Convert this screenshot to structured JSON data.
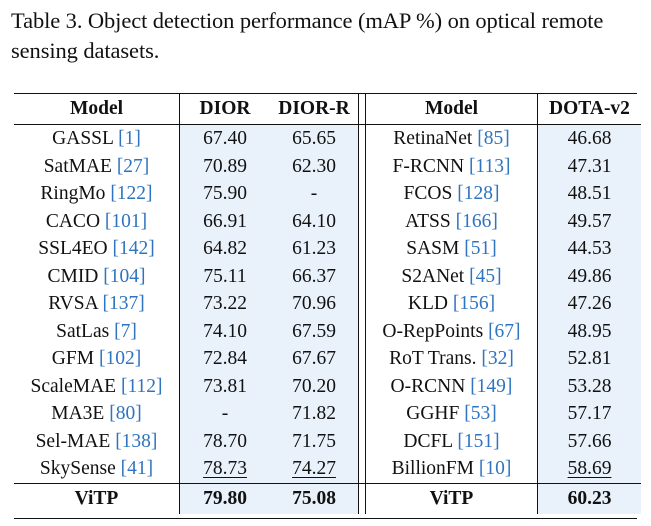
{
  "caption": {
    "line1": "Table 3. Object detection performance (mAP %) on optical remote",
    "line2": "sensing datasets."
  },
  "headers": {
    "model_left": "Model",
    "dior": "DIOR",
    "dior_r": "DIOR-R",
    "model_right": "Model",
    "dota_v2": "DOTA-v2"
  },
  "rows": [
    {
      "left_name": "GASSL",
      "left_ref": "[1]",
      "dior": "67.40",
      "dior_r": "65.65",
      "right_name": "RetinaNet",
      "right_ref": "[85]",
      "dota": "46.68"
    },
    {
      "left_name": "SatMAE",
      "left_ref": "[27]",
      "dior": "70.89",
      "dior_r": "62.30",
      "right_name": "F-RCNN",
      "right_ref": "[113]",
      "dota": "47.31"
    },
    {
      "left_name": "RingMo",
      "left_ref": "[122]",
      "dior": "75.90",
      "dior_r": "-",
      "right_name": "FCOS",
      "right_ref": "[128]",
      "dota": "48.51"
    },
    {
      "left_name": "CACO",
      "left_ref": "[101]",
      "dior": "66.91",
      "dior_r": "64.10",
      "right_name": "ATSS",
      "right_ref": "[166]",
      "dota": "49.57"
    },
    {
      "left_name": "SSL4EO",
      "left_ref": "[142]",
      "dior": "64.82",
      "dior_r": "61.23",
      "right_name": "SASM",
      "right_ref": "[51]",
      "dota": "44.53"
    },
    {
      "left_name": "CMID",
      "left_ref": "[104]",
      "dior": "75.11",
      "dior_r": "66.37",
      "right_name": "S2ANet",
      "right_ref": "[45]",
      "dota": "49.86"
    },
    {
      "left_name": "RVSA",
      "left_ref": "[137]",
      "dior": "73.22",
      "dior_r": "70.96",
      "right_name": "KLD",
      "right_ref": "[156]",
      "dota": "47.26"
    },
    {
      "left_name": "SatLas",
      "left_ref": "[7]",
      "dior": "74.10",
      "dior_r": "67.59",
      "right_name": "O-RepPoints",
      "right_ref": "[67]",
      "dota": "48.95"
    },
    {
      "left_name": "GFM",
      "left_ref": "[102]",
      "dior": "72.84",
      "dior_r": "67.67",
      "right_name": "RoT Trans.",
      "right_ref": "[32]",
      "dota": "52.81"
    },
    {
      "left_name": "ScaleMAE",
      "left_ref": "[112]",
      "dior": "73.81",
      "dior_r": "70.20",
      "right_name": "O-RCNN",
      "right_ref": "[149]",
      "dota": "53.28"
    },
    {
      "left_name": "MA3E",
      "left_ref": "[80]",
      "dior": "-",
      "dior_r": "71.82",
      "right_name": "GGHF",
      "right_ref": "[53]",
      "dota": "57.17"
    },
    {
      "left_name": "Sel-MAE",
      "left_ref": "[138]",
      "dior": "78.70",
      "dior_r": "71.75",
      "right_name": "DCFL",
      "right_ref": "[151]",
      "dota": "57.66"
    },
    {
      "left_name": "SkySense",
      "left_ref": "[41]",
      "dior": "78.73",
      "dior_r": "74.27",
      "right_name": "BillionFM",
      "right_ref": "[10]",
      "dota": "58.69"
    }
  ],
  "vitp": {
    "left_name": "ViTP",
    "dior": "79.80",
    "dior_r": "75.08",
    "right_name": "ViTP",
    "dota": "60.23"
  }
}
